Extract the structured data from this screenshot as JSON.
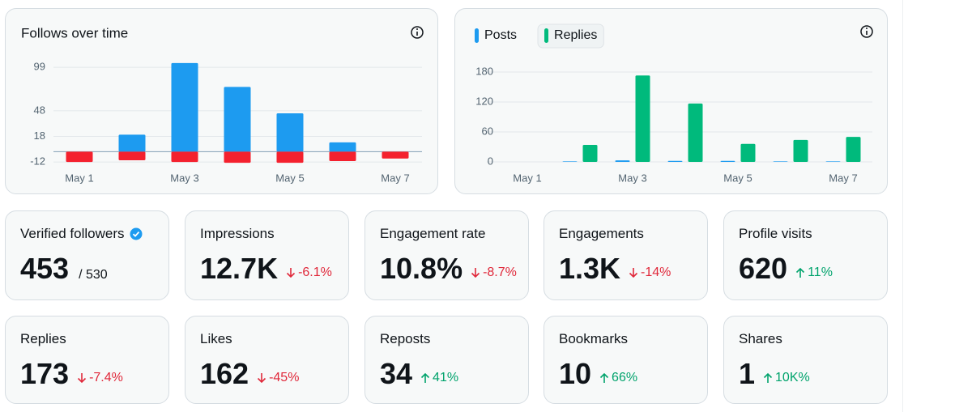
{
  "chart_data": [
    {
      "type": "bar",
      "title": "Follows over time",
      "barmode": "overlay",
      "categories": [
        "May 1",
        null,
        "May 3",
        null,
        "May 5",
        null,
        "May 7"
      ],
      "series": [
        {
          "color": "#1d9bf0",
          "values": [
            0,
            20,
            104,
            76,
            45,
            11,
            0
          ]
        },
        {
          "color": "#f4212e",
          "values": [
            -12,
            -10,
            -12,
            -13,
            -13,
            -11,
            -8
          ]
        }
      ],
      "ylim": [
        -20,
        110
      ],
      "yticks": [
        -12,
        18,
        48,
        99
      ],
      "grid": true
    },
    {
      "type": "bar",
      "barmode": "group",
      "categories": [
        "May 1",
        null,
        "May 3",
        null,
        "May 5",
        null,
        "May 7"
      ],
      "series": [
        {
          "name": "Posts",
          "color": "#1d9bf0",
          "values": [
            0,
            1,
            3,
            2,
            2,
            1,
            1
          ]
        },
        {
          "name": "Replies",
          "color": "#00ba7c",
          "values": [
            0,
            34,
            173,
            117,
            36,
            44,
            50
          ]
        }
      ],
      "ylim": [
        0,
        190
      ],
      "yticks": [
        0,
        60,
        120,
        180
      ],
      "grid": true
    }
  ],
  "stats": [
    {
      "label": "Verified followers",
      "value": "453",
      "total": "/ 530",
      "verified": true
    },
    {
      "label": "Impressions",
      "value": "12.7K",
      "change": "-6.1%",
      "change_color": "#e0283a"
    },
    {
      "label": "Engagement rate",
      "value": "10.8%",
      "change": "-8.7%",
      "change_color": "#e0283a"
    },
    {
      "label": "Engagements",
      "value": "1.3K",
      "change": "-14%",
      "change_color": "#e0283a"
    },
    {
      "label": "Profile visits",
      "value": "620",
      "change": "11%",
      "change_color": "#00a36c"
    },
    {
      "label": "Replies",
      "value": "173",
      "change": "-7.4%",
      "change_color": "#e0283a"
    },
    {
      "label": "Likes",
      "value": "162",
      "change": "-45%",
      "change_color": "#e0283a"
    },
    {
      "label": "Reposts",
      "value": "34",
      "change": "41%",
      "change_color": "#00a36c"
    },
    {
      "label": "Bookmarks",
      "value": "10",
      "change": "66%",
      "change_color": "#00a36c"
    },
    {
      "label": "Shares",
      "value": "1",
      "change": "10K%",
      "change_color": "#00a36c"
    }
  ]
}
